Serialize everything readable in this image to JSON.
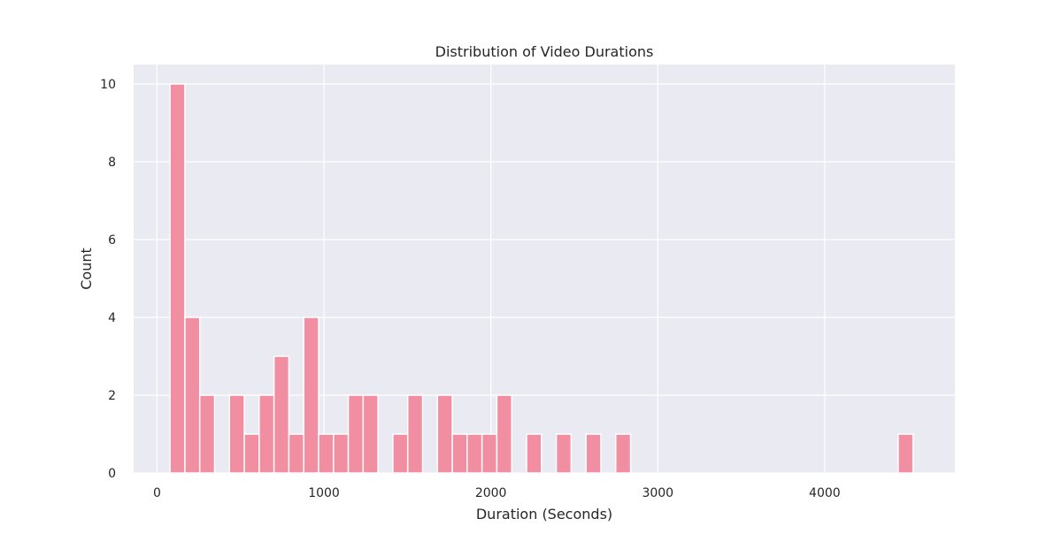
{
  "chart_data": {
    "type": "bar",
    "title": "Distribution of Video Durations",
    "xlabel": "Duration (Seconds)",
    "ylabel": "Count",
    "xlim": [
      -140,
      4780
    ],
    "ylim": [
      0,
      10.5
    ],
    "xticks": [
      0,
      1000,
      2000,
      3000,
      4000
    ],
    "yticks": [
      0,
      2,
      4,
      6,
      8,
      10
    ],
    "grid": true,
    "colors": {
      "bar": "#f28ea1",
      "bar_edge": "#ffffff",
      "plot_bg": "#eaeaf2",
      "grid": "#ffffff",
      "text": "#262626"
    },
    "bin_width": 89,
    "bins": [
      {
        "x0": 78,
        "count": 10
      },
      {
        "x0": 167,
        "count": 4
      },
      {
        "x0": 256,
        "count": 2
      },
      {
        "x0": 345,
        "count": 0
      },
      {
        "x0": 434,
        "count": 2
      },
      {
        "x0": 523,
        "count": 1
      },
      {
        "x0": 612,
        "count": 2
      },
      {
        "x0": 701,
        "count": 3
      },
      {
        "x0": 790,
        "count": 1
      },
      {
        "x0": 879,
        "count": 4
      },
      {
        "x0": 968,
        "count": 1
      },
      {
        "x0": 1057,
        "count": 1
      },
      {
        "x0": 1146,
        "count": 2
      },
      {
        "x0": 1235,
        "count": 2
      },
      {
        "x0": 1324,
        "count": 0
      },
      {
        "x0": 1413,
        "count": 1
      },
      {
        "x0": 1502,
        "count": 2
      },
      {
        "x0": 1591,
        "count": 0
      },
      {
        "x0": 1680,
        "count": 2
      },
      {
        "x0": 1769,
        "count": 1
      },
      {
        "x0": 1858,
        "count": 1
      },
      {
        "x0": 1947,
        "count": 1
      },
      {
        "x0": 2036,
        "count": 2
      },
      {
        "x0": 2125,
        "count": 0
      },
      {
        "x0": 2214,
        "count": 1
      },
      {
        "x0": 2303,
        "count": 0
      },
      {
        "x0": 2392,
        "count": 1
      },
      {
        "x0": 2481,
        "count": 0
      },
      {
        "x0": 2570,
        "count": 1
      },
      {
        "x0": 2659,
        "count": 0
      },
      {
        "x0": 2748,
        "count": 1
      },
      {
        "x0": 4440,
        "count": 1
      }
    ]
  }
}
